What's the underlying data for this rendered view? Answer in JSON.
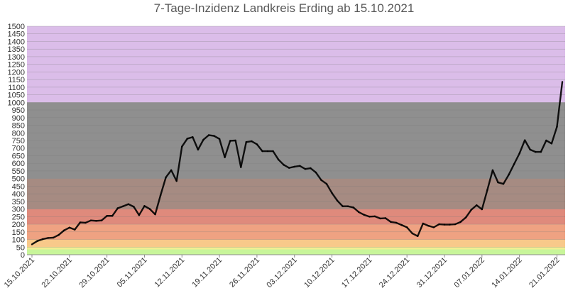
{
  "chart_data": {
    "type": "line",
    "title": "7-Tage-Inzidenz Landkreis Erding ab 15.10.2021",
    "xlabel": "",
    "ylabel": "",
    "ylim": [
      0,
      1500
    ],
    "y_ticks": [
      0,
      50,
      100,
      150,
      200,
      250,
      300,
      350,
      400,
      450,
      500,
      550,
      600,
      650,
      700,
      750,
      800,
      850,
      900,
      950,
      1000,
      1050,
      1100,
      1150,
      1200,
      1250,
      1300,
      1350,
      1400,
      1450,
      1500
    ],
    "x_tick_labels": [
      "15.10.2021",
      "22.10.2021",
      "29.10.2021",
      "05.11.2021",
      "12.11.2021",
      "19.11.2021",
      "26.11.2021",
      "03.12.2021",
      "10.12.2021",
      "17.12.2021",
      "24.12.2021",
      "31.12.2021",
      "07.01.2022",
      "14.01.2022",
      "21.01.2022"
    ],
    "grid": true,
    "bands": [
      {
        "from": 0,
        "to": 35,
        "color": "#c8f59a"
      },
      {
        "from": 35,
        "to": 50,
        "color": "#f2ef92"
      },
      {
        "from": 50,
        "to": 100,
        "color": "#f8c98a"
      },
      {
        "from": 100,
        "to": 200,
        "color": "#efa282"
      },
      {
        "from": 200,
        "to": 300,
        "color": "#df8a7c"
      },
      {
        "from": 300,
        "to": 500,
        "color": "#a68b82"
      },
      {
        "from": 500,
        "to": 1000,
        "color": "#8f8f8f"
      },
      {
        "from": 1000,
        "to": 1500,
        "color": "#dbbde9"
      }
    ],
    "series_color": "#000000",
    "series": [
      {
        "values": [
          68,
          90,
          102,
          110,
          112,
          130,
          160,
          178,
          165,
          212,
          210,
          225,
          222,
          225,
          255,
          255,
          305,
          318,
          332,
          315,
          260,
          320,
          300,
          265,
          390,
          508,
          555,
          484,
          710,
          762,
          772,
          690,
          755,
          785,
          780,
          760,
          640,
          748,
          750,
          575,
          740,
          745,
          725,
          680,
          680,
          680,
          625,
          590,
          570,
          578,
          583,
          563,
          568,
          540,
          490,
          465,
          405,
          355,
          318,
          318,
          310,
          280,
          262,
          250,
          252,
          238,
          240,
          215,
          210,
          195,
          180,
          140,
          122,
          205,
          190,
          180,
          200,
          198,
          198,
          200,
          215,
          245,
          295,
          325,
          298,
          425,
          555,
          475,
          465,
          525,
          595,
          665,
          752,
          690,
          675,
          675,
          750,
          730,
          840,
          1135
        ]
      }
    ]
  }
}
